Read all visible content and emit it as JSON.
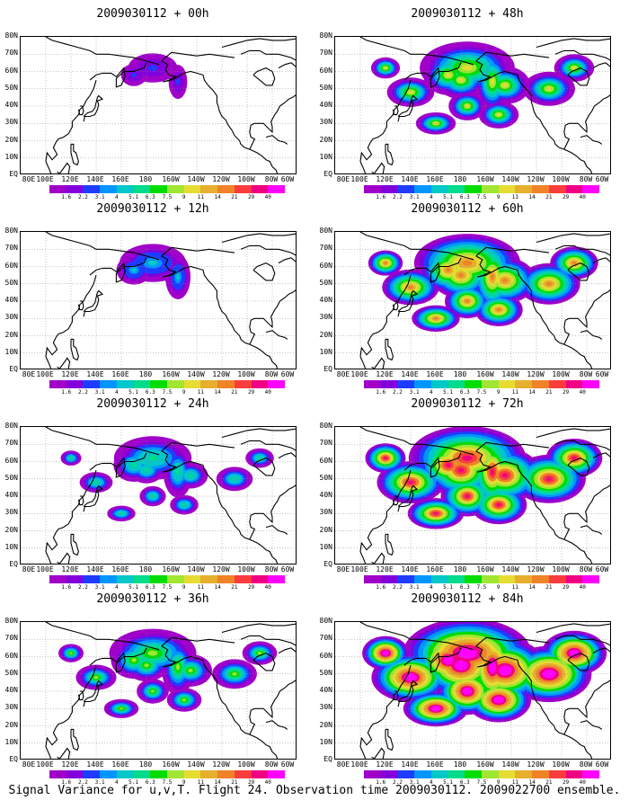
{
  "panels": [
    {
      "title": "2009030112 + 00h",
      "intensity": 0.0
    },
    {
      "title": "2009030112 + 48h",
      "intensity": 0.58
    },
    {
      "title": "2009030112 + 12h",
      "intensity": 0.22
    },
    {
      "title": "2009030112 + 60h",
      "intensity": 0.72
    },
    {
      "title": "2009030112 + 24h",
      "intensity": 0.36
    },
    {
      "title": "2009030112 + 72h",
      "intensity": 0.86
    },
    {
      "title": "2009030112 + 36h",
      "intensity": 0.48
    },
    {
      "title": "2009030112 + 84h",
      "intensity": 1.0
    }
  ],
  "axes": {
    "lat_labels": [
      "80N",
      "70N",
      "60N",
      "50N",
      "40N",
      "30N",
      "20N",
      "10N",
      "EQ"
    ],
    "lon_labels": [
      "80E",
      "100E",
      "120E",
      "140E",
      "160E",
      "180",
      "160W",
      "140W",
      "120W",
      "100W",
      "80W",
      "60W"
    ]
  },
  "colorbar": {
    "labels": [
      "1.6",
      "2.2",
      "3.1",
      "4",
      "5.1",
      "6.3",
      "7.5",
      "9",
      "11",
      "14",
      "21",
      "29",
      "40"
    ],
    "colors": [
      "#a000c8",
      "#8200dc",
      "#1e3cff",
      "#0096ff",
      "#00c8c8",
      "#00dc8c",
      "#00dc00",
      "#a0e632",
      "#e6dc32",
      "#e6af2d",
      "#f08228",
      "#fa3c3c",
      "#f00082",
      "#ff00ff"
    ]
  },
  "caption": "Signal Variance for u,v,T. Flight 24. Observation time 2009030112. 2009022700 ensemble."
}
